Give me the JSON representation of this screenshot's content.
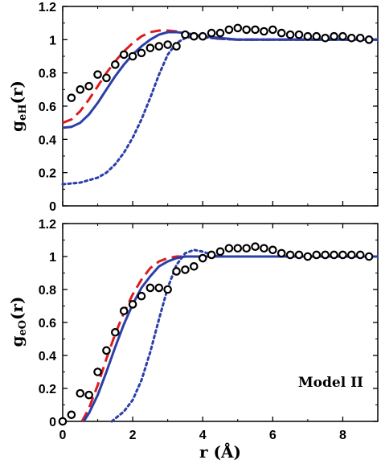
{
  "chart_data": [
    {
      "type": "line",
      "ylabel_main": "g",
      "ylabel_sub": "eH",
      "ylabel_arg": "(r)",
      "xlim": [
        0,
        9
      ],
      "ylim": [
        0,
        1.2
      ],
      "xticks": [
        0,
        2,
        4,
        6,
        8
      ],
      "yticks": [
        0,
        0.2,
        0.4,
        0.6,
        0.8,
        1,
        1.2
      ],
      "xtick_labels": [
        "",
        "",
        "",
        "",
        ""
      ],
      "ytick_labels": [
        "0",
        "0.2",
        "0.4",
        "0.6",
        "0.8",
        "1",
        "1.2"
      ],
      "annotation": "",
      "series": [
        {
          "style": "dashed",
          "color": "#dd1c1c",
          "x": [
            0,
            0.25,
            0.5,
            0.75,
            1,
            1.25,
            1.5,
            1.75,
            2,
            2.25,
            2.5,
            2.75,
            3,
            3.25,
            3.5,
            3.75,
            4,
            4.5,
            5,
            6,
            7,
            8,
            9
          ],
          "y": [
            0.5,
            0.52,
            0.57,
            0.64,
            0.72,
            0.8,
            0.87,
            0.93,
            0.98,
            1.02,
            1.045,
            1.055,
            1.055,
            1.05,
            1.04,
            1.03,
            1.015,
            1.005,
            1.0,
            1.0,
            1.0,
            1.0,
            1.0
          ]
        },
        {
          "style": "solid",
          "color": "#2c3fa8",
          "x": [
            0,
            0.25,
            0.5,
            0.75,
            1,
            1.25,
            1.5,
            1.75,
            2,
            2.25,
            2.5,
            2.75,
            3,
            3.25,
            3.5,
            3.75,
            4,
            4.5,
            5,
            6,
            7,
            8,
            9
          ],
          "y": [
            0.47,
            0.475,
            0.5,
            0.55,
            0.62,
            0.7,
            0.78,
            0.85,
            0.91,
            0.96,
            1.0,
            1.03,
            1.045,
            1.045,
            1.04,
            1.03,
            1.02,
            1.01,
            1.0,
            1.0,
            1.0,
            1.0,
            1.0
          ]
        },
        {
          "style": "dotted",
          "color": "#2c3fa8",
          "x": [
            0,
            0.5,
            1,
            1.25,
            1.5,
            1.75,
            2,
            2.25,
            2.5,
            2.75,
            3,
            3.25,
            3.5,
            3.75,
            4,
            4.25,
            4.5,
            5,
            6,
            7,
            8,
            9
          ],
          "y": [
            0.13,
            0.14,
            0.17,
            0.2,
            0.25,
            0.32,
            0.41,
            0.52,
            0.65,
            0.79,
            0.91,
            0.98,
            1.01,
            1.02,
            1.02,
            1.01,
            1.005,
            1.0,
            1.0,
            1.0,
            1.0,
            1.0
          ]
        },
        {
          "style": "markers",
          "color": "#000000",
          "x": [
            0.25,
            0.5,
            0.75,
            1.0,
            1.25,
            1.5,
            1.75,
            2.0,
            2.25,
            2.5,
            2.75,
            3.0,
            3.25,
            3.5,
            3.75,
            4.0,
            4.25,
            4.5,
            4.75,
            5.0,
            5.25,
            5.5,
            5.75,
            6.0,
            6.25,
            6.5,
            6.75,
            7.0,
            7.25,
            7.5,
            7.75,
            8.0,
            8.25,
            8.5,
            8.75
          ],
          "y": [
            0.65,
            0.7,
            0.72,
            0.79,
            0.77,
            0.85,
            0.91,
            0.9,
            0.92,
            0.95,
            0.96,
            0.97,
            0.96,
            1.03,
            1.02,
            1.02,
            1.04,
            1.04,
            1.06,
            1.07,
            1.06,
            1.06,
            1.05,
            1.06,
            1.04,
            1.03,
            1.03,
            1.02,
            1.02,
            1.01,
            1.02,
            1.02,
            1.01,
            1.01,
            1.0
          ]
        }
      ]
    },
    {
      "type": "line",
      "ylabel_main": "g",
      "ylabel_sub": "eO",
      "ylabel_arg": "(r)",
      "xlabel": "r (Å)",
      "xlim": [
        0,
        9
      ],
      "ylim": [
        0,
        1.2
      ],
      "xticks": [
        0,
        2,
        4,
        6,
        8
      ],
      "yticks": [
        0,
        0.2,
        0.4,
        0.6,
        0.8,
        1,
        1.2
      ],
      "xtick_labels": [
        "0",
        "2",
        "4",
        "6",
        "8"
      ],
      "ytick_labels": [
        "0",
        "0.2",
        "0.4",
        "0.6",
        "0.8",
        "1",
        "1.2"
      ],
      "annotation": "Model II",
      "series": [
        {
          "style": "dashed",
          "color": "#dd1c1c",
          "x": [
            0.55,
            0.75,
            1.0,
            1.25,
            1.5,
            1.75,
            2.0,
            2.25,
            2.5,
            2.75,
            3.0,
            3.25,
            3.5,
            4.0,
            5,
            6,
            7,
            8,
            9
          ],
          "y": [
            0.0,
            0.08,
            0.22,
            0.38,
            0.53,
            0.66,
            0.77,
            0.86,
            0.93,
            0.97,
            0.99,
            1.0,
            1.0,
            1.0,
            1.0,
            1.0,
            1.0,
            1.0,
            1.0
          ]
        },
        {
          "style": "solid",
          "color": "#2c3fa8",
          "x": [
            0.6,
            0.75,
            1.0,
            1.25,
            1.5,
            1.75,
            2.0,
            2.25,
            2.5,
            2.75,
            3.0,
            3.25,
            3.5,
            4.0,
            5,
            6,
            7,
            8,
            9
          ],
          "y": [
            0.0,
            0.05,
            0.16,
            0.3,
            0.45,
            0.59,
            0.71,
            0.81,
            0.88,
            0.94,
            0.97,
            0.99,
            1.0,
            1.0,
            1.0,
            1.0,
            1.0,
            1.0,
            1.0
          ]
        },
        {
          "style": "dotted",
          "color": "#2c3fa8",
          "x": [
            1.4,
            1.75,
            2.0,
            2.25,
            2.5,
            2.75,
            3.0,
            3.25,
            3.5,
            3.75,
            4.0,
            4.25,
            4.5,
            5.0,
            6,
            7,
            8,
            9
          ],
          "y": [
            0.0,
            0.06,
            0.13,
            0.25,
            0.42,
            0.62,
            0.81,
            0.95,
            1.02,
            1.04,
            1.03,
            1.01,
            1.0,
            1.0,
            1.0,
            1.0,
            1.0,
            1.0
          ]
        },
        {
          "style": "markers",
          "color": "#000000",
          "x": [
            0.0,
            0.25,
            0.5,
            0.75,
            1.0,
            1.25,
            1.5,
            1.75,
            2.0,
            2.25,
            2.5,
            2.75,
            3.0,
            3.25,
            3.5,
            3.75,
            4.0,
            4.25,
            4.5,
            4.75,
            5.0,
            5.25,
            5.5,
            5.75,
            6.0,
            6.25,
            6.5,
            6.75,
            7.0,
            7.25,
            7.5,
            7.75,
            8.0,
            8.25,
            8.5,
            8.75
          ],
          "y": [
            0.0,
            0.04,
            0.17,
            0.16,
            0.3,
            0.43,
            0.54,
            0.67,
            0.71,
            0.76,
            0.81,
            0.81,
            0.8,
            0.91,
            0.92,
            0.94,
            0.99,
            1.01,
            1.03,
            1.05,
            1.05,
            1.05,
            1.06,
            1.05,
            1.04,
            1.02,
            1.01,
            1.01,
            1.0,
            1.01,
            1.01,
            1.01,
            1.01,
            1.01,
            1.01,
            1.0
          ]
        }
      ]
    }
  ]
}
